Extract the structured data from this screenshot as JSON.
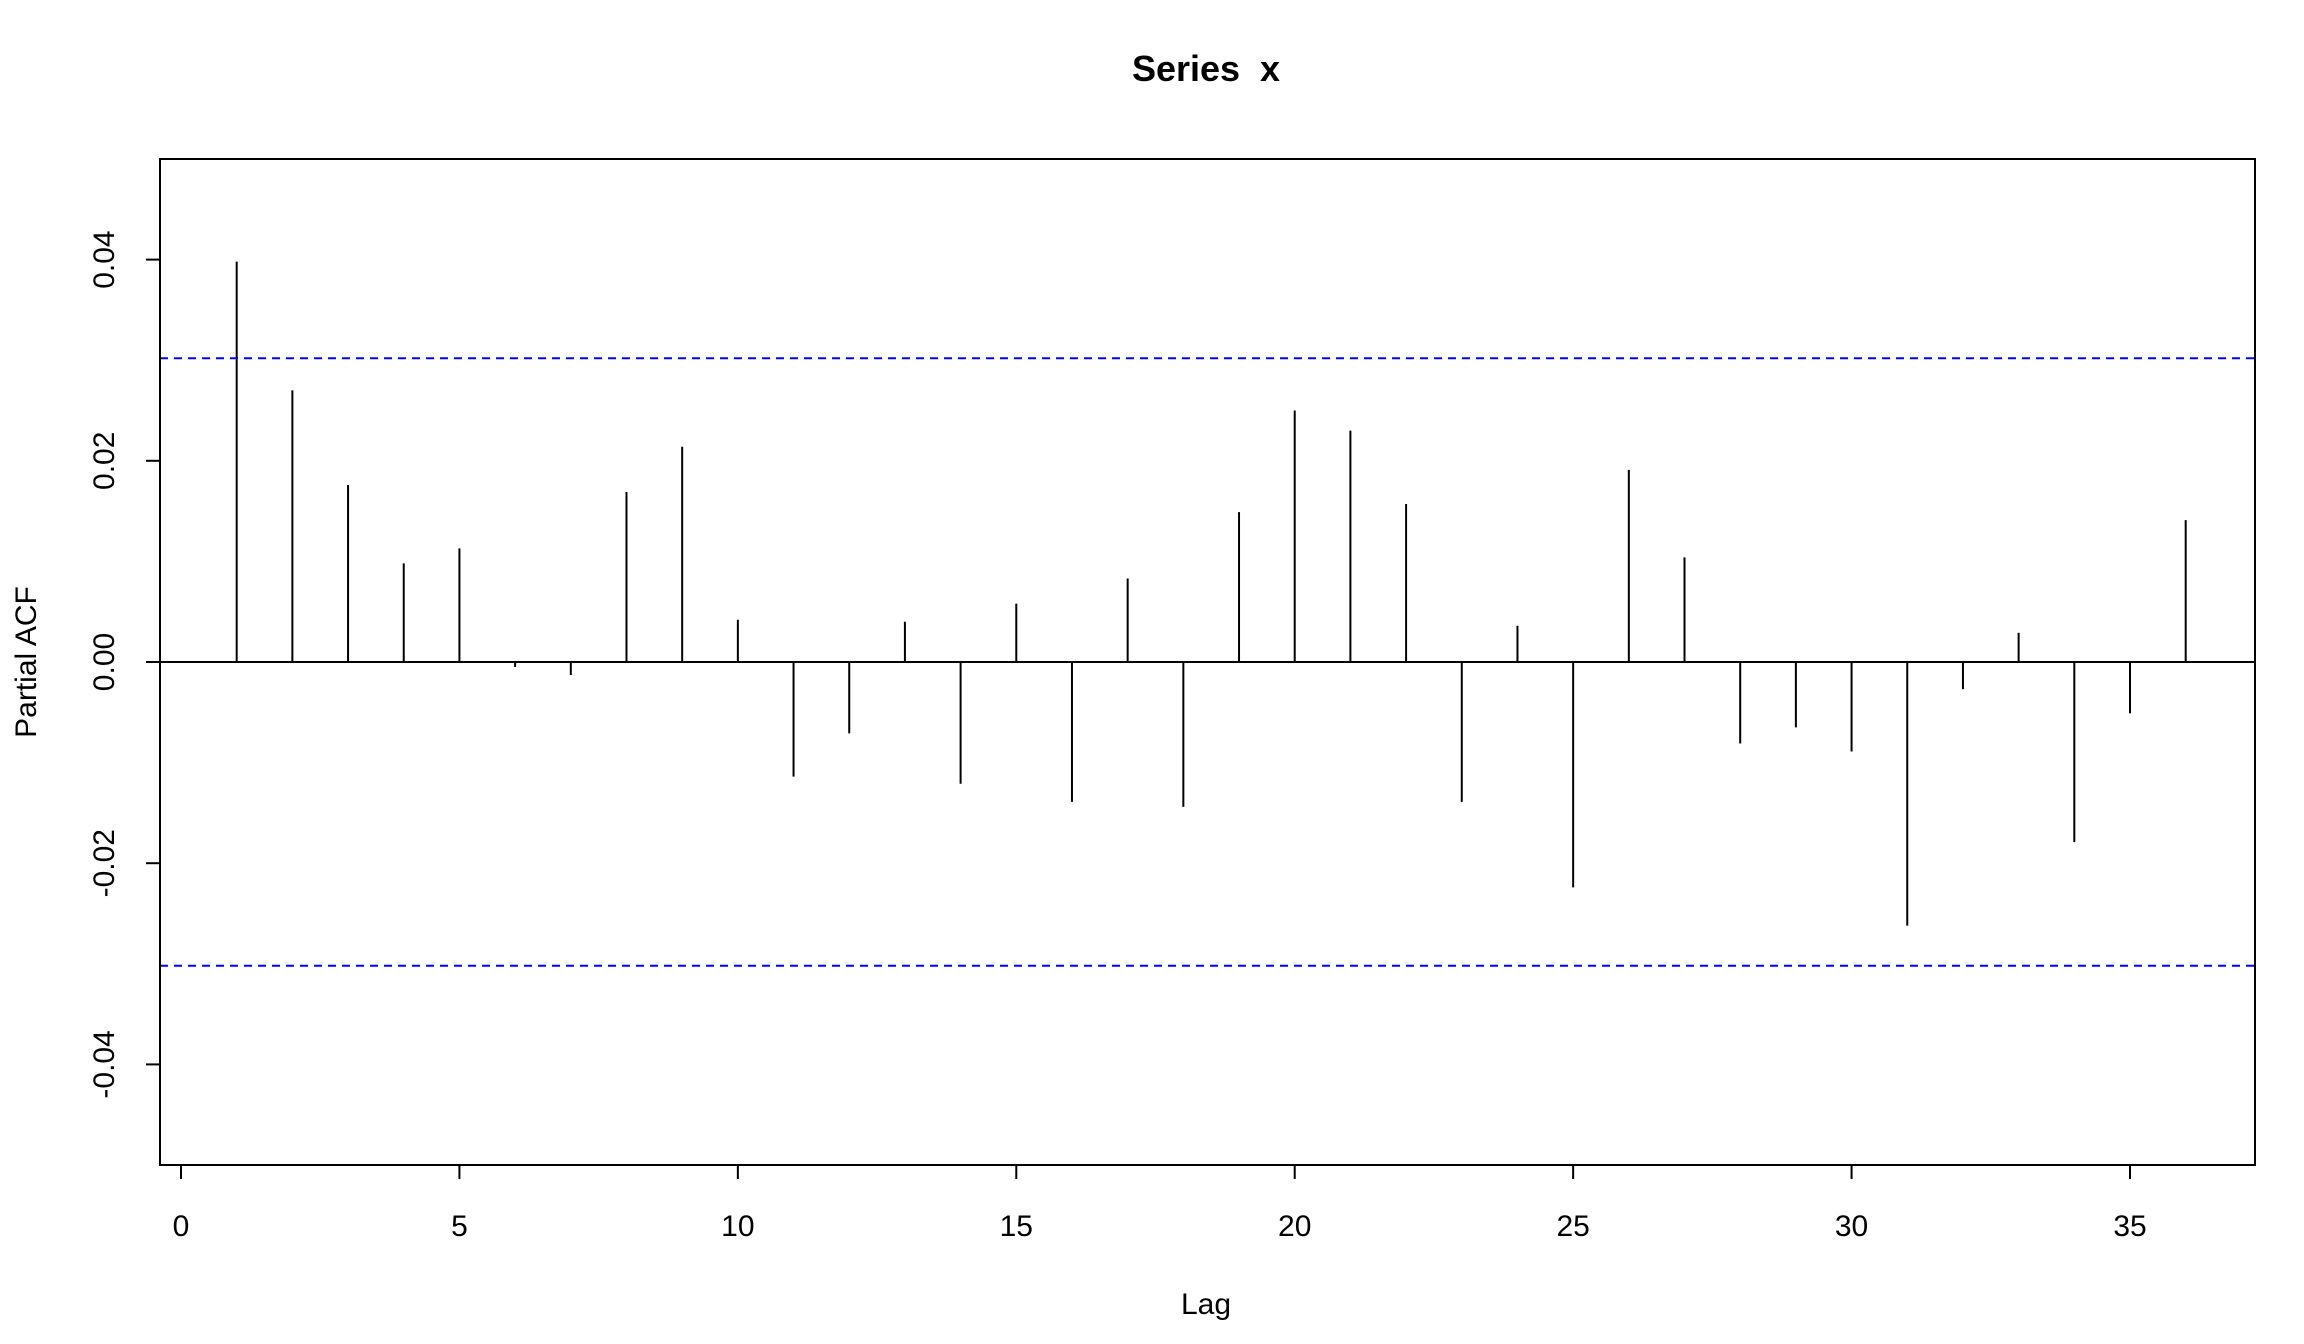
{
  "chart_data": {
    "type": "bar",
    "title": "Series  x",
    "xlabel": "Lag",
    "ylabel": "Partial ACF",
    "xlim": [
      0,
      37
    ],
    "ylim": [
      -0.05,
      0.05
    ],
    "x_ticks": [
      0,
      5,
      10,
      15,
      20,
      25,
      30,
      35
    ],
    "x_tick_labels": [
      "0",
      "5",
      "10",
      "15",
      "20",
      "25",
      "30",
      "35"
    ],
    "y_ticks": [
      -0.04,
      -0.02,
      0.0,
      0.02,
      0.04
    ],
    "y_tick_labels": [
      "-0.04",
      "-0.02",
      "0.00",
      "0.02",
      "0.04"
    ],
    "confidence_bounds": [
      0.0302,
      -0.0302
    ],
    "colors": {
      "bars": "#000000",
      "bounds": "#0000ff",
      "axis": "#000000"
    },
    "grid": false,
    "lags": [
      1,
      2,
      3,
      4,
      5,
      6,
      7,
      8,
      9,
      10,
      11,
      12,
      13,
      14,
      15,
      16,
      17,
      18,
      19,
      20,
      21,
      22,
      23,
      24,
      25,
      26,
      27,
      28,
      29,
      30,
      31,
      32,
      33,
      34,
      35,
      36
    ],
    "values": [
      0.0398,
      0.027,
      0.0176,
      0.0098,
      0.0113,
      -0.0005,
      -0.0013,
      0.0169,
      0.0214,
      0.0042,
      -0.0114,
      -0.0071,
      0.004,
      -0.0121,
      0.0058,
      -0.0139,
      0.0083,
      -0.0144,
      0.0149,
      0.025,
      0.023,
      0.0157,
      -0.0139,
      0.0036,
      -0.0224,
      0.0191,
      0.0104,
      -0.0081,
      -0.0065,
      -0.0089,
      -0.0262,
      -0.0027,
      0.0029,
      -0.0179,
      -0.0051,
      0.0141
    ]
  }
}
